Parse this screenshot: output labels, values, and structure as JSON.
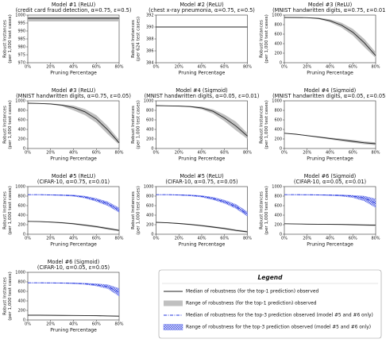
{
  "chart_data": [
    {
      "type": "line",
      "title": [
        "Model #1 (ReLU)",
        "(credit card fraud detection, α=0.75, ε=0.5)"
      ],
      "ylabel": [
        "Robust Instances",
        "(per 1,000 test cases)"
      ],
      "xlabel": "Pruning Percentage",
      "x": [
        0,
        10,
        20,
        30,
        40,
        50,
        60,
        70,
        80
      ],
      "xlim": [
        0,
        80
      ],
      "xticks": [
        {
          "value": 0,
          "label": "0%"
        },
        {
          "value": 20,
          "label": "20%"
        },
        {
          "value": 40,
          "label": "40%"
        },
        {
          "value": 60,
          "label": "60%"
        },
        {
          "value": 80,
          "label": "80%"
        }
      ],
      "ylim": [
        970,
        1000
      ],
      "yticks": [
        970,
        975,
        980,
        985,
        990,
        995,
        1000
      ],
      "series": [
        {
          "color": "#222222",
          "dash": "none",
          "band_color": "#c0c0c0",
          "values": [
            998,
            998,
            998,
            998,
            998,
            998,
            998,
            998,
            998
          ],
          "low": [
            996,
            996,
            996,
            996,
            996,
            996,
            996,
            996,
            996
          ],
          "high": [
            999,
            999,
            999,
            999,
            999,
            999,
            999,
            999,
            999
          ]
        }
      ]
    },
    {
      "type": "line",
      "title": [
        "Model #2 (ReLU)",
        "(chest x-ray pneumonia, α=0.75, ε=0.5)"
      ],
      "ylabel": [
        "Robust Instances",
        "(per 624 test cases)"
      ],
      "xlabel": "Pruning Percentage",
      "x": [
        0,
        10,
        20,
        30,
        40,
        50,
        60,
        70,
        80
      ],
      "xlim": [
        0,
        80
      ],
      "xticks": [
        {
          "value": 0,
          "label": "0%"
        },
        {
          "value": 20,
          "label": "20%"
        },
        {
          "value": 40,
          "label": "40%"
        },
        {
          "value": 60,
          "label": "60%"
        },
        {
          "value": 80,
          "label": "80%"
        }
      ],
      "ylim": [
        384,
        392
      ],
      "yticks": [
        384,
        386,
        388,
        390,
        392
      ],
      "series": [
        {
          "color": "#222222",
          "dash": "none",
          "values": [
            390,
            390,
            390,
            390,
            390,
            390,
            390,
            390,
            390
          ]
        }
      ]
    },
    {
      "type": "line",
      "title": [
        "Model #3 (ReLU)",
        "(MNIST handwritten digits, α=0.75, ε=0.01)"
      ],
      "ylabel": [
        "Robust Instances",
        "(per 1,000 test cases)"
      ],
      "xlabel": "Pruning Percentage",
      "x": [
        0,
        10,
        20,
        30,
        40,
        50,
        60,
        70,
        80
      ],
      "xlim": [
        0,
        80
      ],
      "xticks": [
        {
          "value": 0,
          "label": "0%"
        },
        {
          "value": 20,
          "label": "20%"
        },
        {
          "value": 40,
          "label": "40%"
        },
        {
          "value": 60,
          "label": "60%"
        },
        {
          "value": 80,
          "label": "80%"
        }
      ],
      "ylim": [
        0,
        1000
      ],
      "yticks": [
        0,
        200,
        400,
        600,
        800,
        1000
      ],
      "series": [
        {
          "color": "#222222",
          "dash": "none",
          "band_color": "#c0c0c0",
          "values": [
            950,
            948,
            945,
            930,
            880,
            790,
            640,
            420,
            150
          ],
          "low": [
            950,
            946,
            940,
            915,
            850,
            740,
            570,
            330,
            100
          ],
          "high": [
            950,
            950,
            950,
            945,
            910,
            840,
            710,
            500,
            220
          ]
        }
      ]
    },
    {
      "type": "line",
      "title": [
        "Model #3 (ReLU)",
        "(MNIST handwritten digits, α=0.75, ε=0.05)"
      ],
      "ylabel": [
        "Robust Instances",
        "(per 1,000 test cases)"
      ],
      "xlabel": "Pruning Percentage",
      "x": [
        0,
        10,
        20,
        30,
        40,
        50,
        60,
        70,
        80
      ],
      "xlim": [
        0,
        80
      ],
      "xticks": [
        {
          "value": 0,
          "label": "0%"
        },
        {
          "value": 20,
          "label": "20%"
        },
        {
          "value": 40,
          "label": "40%"
        },
        {
          "value": 60,
          "label": "60%"
        },
        {
          "value": 80,
          "label": "80%"
        }
      ],
      "ylim": [
        0,
        1000
      ],
      "yticks": [
        0,
        200,
        400,
        600,
        800,
        1000
      ],
      "series": [
        {
          "color": "#222222",
          "dash": "none",
          "band_color": "#c0c0c0",
          "values": [
            950,
            945,
            935,
            910,
            860,
            770,
            620,
            390,
            120
          ],
          "low": [
            950,
            940,
            925,
            890,
            800,
            700,
            540,
            300,
            80
          ],
          "high": [
            950,
            950,
            945,
            925,
            900,
            830,
            700,
            470,
            180
          ]
        }
      ]
    },
    {
      "type": "line",
      "title": [
        "Model #4 (Sigmoid)",
        "(MNIST handwritten digits, α=0.05, ε=0.01)"
      ],
      "ylabel": [
        "Robust Instances",
        "(per 1,000 test cases)"
      ],
      "xlabel": "Pruning Percentage",
      "x": [
        0,
        10,
        20,
        30,
        40,
        50,
        60,
        70,
        80
      ],
      "xlim": [
        0,
        80
      ],
      "xticks": [
        {
          "value": 0,
          "label": "0%"
        },
        {
          "value": 20,
          "label": "20%"
        },
        {
          "value": 40,
          "label": "40%"
        },
        {
          "value": 60,
          "label": "60%"
        },
        {
          "value": 80,
          "label": "80%"
        }
      ],
      "ylim": [
        0,
        1000
      ],
      "yticks": [
        0,
        200,
        400,
        600,
        800,
        1000
      ],
      "series": [
        {
          "color": "#222222",
          "dash": "none",
          "band_color": "#c0c0c0",
          "values": [
            900,
            895,
            890,
            880,
            850,
            780,
            640,
            470,
            260
          ],
          "low": [
            900,
            890,
            880,
            865,
            820,
            730,
            570,
            380,
            200
          ],
          "high": [
            900,
            900,
            895,
            890,
            875,
            820,
            710,
            560,
            320
          ]
        }
      ]
    },
    {
      "type": "line",
      "title": [
        "Model #4 (Sigmoid)",
        "(MNIST handwritten digits, α=0.05, ε=0.05)"
      ],
      "ylabel": [
        "Robust Instances",
        "(per 1,000 test cases)"
      ],
      "xlabel": "Pruning Percentage",
      "x": [
        0,
        10,
        20,
        30,
        40,
        50,
        60,
        70,
        80
      ],
      "xlim": [
        0,
        80
      ],
      "xticks": [
        {
          "value": 0,
          "label": "0%"
        },
        {
          "value": 20,
          "label": "20%"
        },
        {
          "value": 40,
          "label": "40%"
        },
        {
          "value": 60,
          "label": "60%"
        },
        {
          "value": 80,
          "label": "80%"
        }
      ],
      "ylim": [
        0,
        1000
      ],
      "yticks": [
        0,
        200,
        400,
        600,
        800,
        1000
      ],
      "series": [
        {
          "color": "#222222",
          "dash": "none",
          "band_color": "#c0c0c0",
          "values": [
            320,
            300,
            270,
            240,
            210,
            180,
            150,
            120,
            100
          ],
          "low": [
            320,
            295,
            260,
            225,
            190,
            155,
            120,
            90,
            70
          ],
          "high": [
            320,
            305,
            280,
            255,
            230,
            205,
            180,
            150,
            130
          ]
        }
      ]
    },
    {
      "type": "line",
      "title": [
        "Model #5 (ReLU)",
        "(CIFAR-10, α=0.75, ε=0.01)"
      ],
      "ylabel": [
        "Robust Instances",
        "(per 1,000 test cases)"
      ],
      "xlabel": "Pruning Percentage",
      "x": [
        0,
        10,
        20,
        30,
        40,
        50,
        60,
        70,
        80
      ],
      "xlim": [
        0,
        80
      ],
      "xticks": [
        {
          "value": 0,
          "label": "0%"
        },
        {
          "value": 20,
          "label": "20%"
        },
        {
          "value": 40,
          "label": "40%"
        },
        {
          "value": 60,
          "label": "60%"
        },
        {
          "value": 80,
          "label": "80%"
        }
      ],
      "ylim": [
        0,
        1000
      ],
      "yticks": [
        0,
        200,
        400,
        600,
        800,
        1000
      ],
      "series": [
        {
          "color": "#222222",
          "dash": "none",
          "band_color": "#c0c0c0",
          "values": [
            270,
            265,
            255,
            240,
            220,
            190,
            160,
            120,
            80
          ],
          "low": [
            270,
            258,
            245,
            228,
            205,
            172,
            140,
            98,
            60
          ],
          "high": [
            270,
            272,
            265,
            252,
            235,
            208,
            180,
            142,
            100
          ]
        },
        {
          "color": "#2233dd",
          "dash": "4 1.5 1 1.5",
          "band_color": "#5566ee",
          "values": [
            830,
            830,
            825,
            820,
            810,
            780,
            720,
            640,
            500
          ],
          "low": [
            830,
            828,
            820,
            812,
            798,
            760,
            690,
            600,
            460
          ],
          "high": [
            830,
            832,
            830,
            828,
            822,
            800,
            750,
            680,
            550
          ]
        }
      ]
    },
    {
      "type": "line",
      "title": [
        "Model #5 (ReLU)",
        "(CIFAR-10, α=0.75, ε=0.05)"
      ],
      "ylabel": [
        "Robust Instances",
        "(per 1,000 test cases)"
      ],
      "xlabel": "Pruning Percentage",
      "x": [
        0,
        10,
        20,
        30,
        40,
        50,
        60,
        70,
        80
      ],
      "xlim": [
        0,
        80
      ],
      "xticks": [
        {
          "value": 0,
          "label": "0%"
        },
        {
          "value": 20,
          "label": "20%"
        },
        {
          "value": 40,
          "label": "40%"
        },
        {
          "value": 60,
          "label": "60%"
        },
        {
          "value": 80,
          "label": "80%"
        }
      ],
      "ylim": [
        0,
        1000
      ],
      "yticks": [
        0,
        200,
        400,
        600,
        800,
        1000
      ],
      "series": [
        {
          "color": "#222222",
          "dash": "none",
          "band_color": "#c0c0c0",
          "values": [
            250,
            240,
            225,
            205,
            180,
            150,
            120,
            80,
            50
          ],
          "low": [
            250,
            232,
            215,
            192,
            165,
            133,
            100,
            62,
            35
          ],
          "high": [
            250,
            248,
            235,
            218,
            195,
            168,
            140,
            100,
            70
          ]
        },
        {
          "color": "#2233dd",
          "dash": "4 1.5 1 1.5",
          "band_color": "#5566ee",
          "values": [
            830,
            830,
            825,
            815,
            795,
            750,
            680,
            580,
            420
          ],
          "low": [
            830,
            827,
            818,
            805,
            780,
            725,
            650,
            540,
            380
          ],
          "high": [
            830,
            832,
            830,
            825,
            810,
            775,
            715,
            625,
            470
          ]
        }
      ]
    },
    {
      "type": "line",
      "title": [
        "Model #6 (Sigmoid)",
        "(CIFAR-10, α=0.05, ε=0.01)"
      ],
      "ylabel": [
        "Robust Instances",
        "(per 1,000 test cases)"
      ],
      "xlabel": "Pruning Percentage",
      "x": [
        0,
        10,
        20,
        30,
        40,
        50,
        60,
        70,
        80
      ],
      "xlim": [
        0,
        80
      ],
      "xticks": [
        {
          "value": 0,
          "label": "0%"
        },
        {
          "value": 20,
          "label": "20%"
        },
        {
          "value": 40,
          "label": "40%"
        },
        {
          "value": 60,
          "label": "60%"
        },
        {
          "value": 80,
          "label": "80%"
        }
      ],
      "ylim": [
        0,
        1000
      ],
      "yticks": [
        0,
        200,
        400,
        600,
        800,
        1000
      ],
      "series": [
        {
          "color": "#222222",
          "dash": "none",
          "band_color": "#c0c0c0",
          "values": [
            220,
            215,
            212,
            210,
            208,
            205,
            200,
            195,
            190
          ],
          "low": [
            220,
            210,
            205,
            202,
            198,
            194,
            188,
            180,
            170
          ],
          "high": [
            220,
            220,
            218,
            217,
            216,
            214,
            210,
            208,
            205
          ]
        },
        {
          "color": "#2233dd",
          "dash": "4 1.5 1 1.5",
          "band_color": "#5566ee",
          "values": [
            830,
            830,
            828,
            826,
            822,
            815,
            800,
            760,
            650
          ],
          "low": [
            830,
            828,
            825,
            820,
            812,
            800,
            770,
            700,
            560
          ],
          "high": [
            830,
            832,
            832,
            830,
            828,
            825,
            815,
            800,
            740
          ]
        }
      ]
    },
    {
      "type": "line",
      "title": [
        "Model #6 (Sigmoid)",
        "(CIFAR-10, α=0.05, ε=0.05)"
      ],
      "ylabel": [
        "Robust Instances",
        "(per 1,000 test cases)"
      ],
      "xlabel": "Pruning Percentage",
      "x": [
        0,
        10,
        20,
        30,
        40,
        50,
        60,
        70,
        80
      ],
      "xlim": [
        0,
        80
      ],
      "xticks": [
        {
          "value": 0,
          "label": "0%"
        },
        {
          "value": 20,
          "label": "20%"
        },
        {
          "value": 40,
          "label": "40%"
        },
        {
          "value": 60,
          "label": "60%"
        },
        {
          "value": 80,
          "label": "80%"
        }
      ],
      "ylim": [
        0,
        1000
      ],
      "yticks": [
        0,
        200,
        400,
        600,
        800,
        1000
      ],
      "series": [
        {
          "color": "#222222",
          "dash": "none",
          "band_color": "#c0c0c0",
          "values": [
            100,
            100,
            98,
            96,
            95,
            93,
            90,
            85,
            80
          ],
          "low": [
            100,
            95,
            92,
            90,
            88,
            85,
            80,
            75,
            68
          ],
          "high": [
            100,
            104,
            104,
            102,
            101,
            100,
            98,
            95,
            92
          ]
        },
        {
          "color": "#2233dd",
          "dash": "4 1.5 1 1.5",
          "band_color": "#5566ee",
          "values": [
            780,
            780,
            778,
            775,
            770,
            760,
            740,
            700,
            580
          ],
          "low": [
            780,
            778,
            775,
            770,
            762,
            748,
            715,
            660,
            500
          ],
          "high": [
            780,
            782,
            782,
            780,
            778,
            770,
            760,
            740,
            660
          ]
        }
      ]
    }
  ],
  "legend": {
    "title": "Legend",
    "entries": [
      {
        "label": "Median of robustness (for the top-1 prediction) observed",
        "kind": "line",
        "color": "#222222",
        "dash": "none"
      },
      {
        "label": "Range of robustness (for the top-1 prediction) observed",
        "kind": "band",
        "color": "#c0c0c0"
      },
      {
        "label": "Median of robustness for the top-3 prediction observed (model #5 and #6 only)",
        "kind": "line",
        "color": "#2233dd",
        "dash": "4 1.5 1 1.5"
      },
      {
        "label": "Range of robustness for the top-3 prediction observed (model #5 and #6 only)",
        "kind": "hatch",
        "color": "#5566ee"
      }
    ]
  }
}
